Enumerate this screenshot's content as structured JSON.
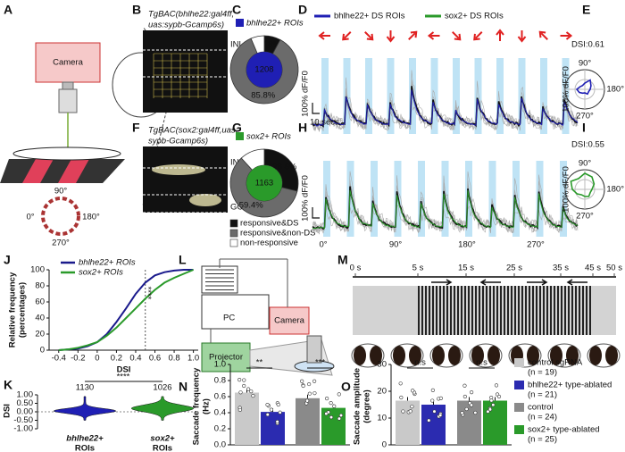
{
  "panel_labels": [
    "A",
    "B",
    "C",
    "D",
    "E",
    "F",
    "G",
    "H",
    "I",
    "J",
    "K",
    "L",
    "M",
    "N",
    "O"
  ],
  "a": {
    "camera": "Camera",
    "angles": [
      "90°",
      "0°",
      "180°",
      "270°"
    ]
  },
  "b": {
    "title": [
      "TgBAC(bhlhe22:gal4ff,",
      "uas:sypb-Gcamp6s)"
    ],
    "layers": [
      "INL",
      "IPL"
    ]
  },
  "c": {
    "legend": "bhlhe22+ ROIs",
    "color": "#1f1fb4",
    "center": "1208",
    "slices": [
      {
        "value": 7.8,
        "label": "7.8%"
      },
      {
        "value": 85.8,
        "label": "85.8%"
      },
      {
        "value": 6.4
      }
    ]
  },
  "d": {
    "legend": [
      {
        "name": "bhlhe22+ DS ROIs",
        "color": "#1f1fb4"
      },
      {
        "name": "sox2+ DS ROIs",
        "color": "#2a9a2a"
      }
    ],
    "scale_y": "100% dF/F0",
    "scale_x": "10 secs"
  },
  "e": {
    "dsi": "DSI:0.61",
    "angles": [
      "90°",
      "180°",
      "270°"
    ],
    "scale": "100% dF/F0"
  },
  "f": {
    "title": [
      "TgBAC(sox2:gal4ff,uas:-",
      "sypb-Gcamp6s)"
    ],
    "layers": [
      "INL",
      "IPL",
      "GCL"
    ]
  },
  "g": {
    "legend": "sox2+ ROIs",
    "color": "#2a9a2a",
    "center": "1163",
    "slices": [
      {
        "value": 28.8,
        "label": "28.8%"
      },
      {
        "value": 59.4,
        "label": "59.4%"
      },
      {
        "value": 11.8
      }
    ],
    "categories": [
      {
        "name": "responsive&DS",
        "color": "#111111"
      },
      {
        "name": "responsive&non-DS",
        "color": "#6b6b6b"
      },
      {
        "name": "non-responsive",
        "color": "#ffffff"
      }
    ]
  },
  "h": {
    "scale_y": "100% dF/F0",
    "angles": [
      "0°",
      "90°",
      "180°",
      "270°"
    ]
  },
  "i": {
    "dsi": "DSI:0.55",
    "angles": [
      "90°",
      "180°",
      "270°"
    ],
    "scale": "100% dF/F0"
  },
  "j": {
    "type": "line",
    "x": [
      -0.4,
      -0.3,
      -0.2,
      -0.1,
      0,
      0.1,
      0.2,
      0.3,
      0.4,
      0.5,
      0.6,
      0.7,
      0.8,
      0.9,
      1.0
    ],
    "series": [
      {
        "name": "bhlhe22+ ROIs",
        "color": "#1a1a8c",
        "values": [
          0,
          1,
          2,
          5,
          10,
          20,
          35,
          52,
          70,
          84,
          93,
          97,
          99,
          100,
          100
        ]
      },
      {
        "name": "sox2+ ROIs",
        "color": "#2a9a2a",
        "values": [
          0,
          1,
          3,
          6,
          10,
          18,
          28,
          40,
          52,
          64,
          75,
          84,
          90,
          95,
          100
        ]
      }
    ],
    "xlim": [
      -0.5,
      1.05
    ],
    "xticks": [
      -0.4,
      -0.2,
      0,
      0.2,
      0.4,
      0.6,
      0.8,
      {
        "value": 1,
        "label": "1.0"
      }
    ],
    "ylim": [
      0,
      100
    ],
    "yticks": [
      0,
      20,
      40,
      60,
      80,
      100
    ],
    "ylabel": [
      "Relative frequency",
      "(percentages)"
    ],
    "xlabel": "DSI",
    "stars": "****",
    "threshold": 0.5
  },
  "k": {
    "ylabel": "DSI",
    "ylim": [
      -1,
      1
    ],
    "yticks": [
      {
        "value": -1,
        "label": "-1.00"
      },
      {
        "value": -0.5,
        "label": "-0.50"
      },
      {
        "value": 0,
        "label": "0.00"
      },
      {
        "value": 0.5,
        "label": "0.50"
      },
      {
        "value": 1,
        "label": "1.00"
      }
    ],
    "counts": [
      "1130",
      "1026"
    ],
    "stars": "****",
    "categories": [
      [
        "bhlhe22+",
        "ROIs"
      ],
      [
        "sox2+",
        "ROIs"
      ]
    ],
    "colors": [
      "#1f1fb4",
      "#2a9a2a"
    ]
  },
  "l": {
    "pc": "PC",
    "camera": "Camera",
    "projector": "Projector"
  },
  "m": {
    "times": [
      "0 s",
      "5 s",
      "15 s",
      "25 s",
      "35 s",
      "45 s",
      "50 s"
    ]
  },
  "n": {
    "ylabel": [
      "Saccade frequency",
      "(Hz)"
    ],
    "ylim": [
      0,
      1
    ],
    "yticks": [
      {
        "value": 0,
        "label": "0.0"
      },
      0.2,
      0.4,
      0.6,
      0.8,
      {
        "value": 1,
        "label": "1.0"
      }
    ],
    "values": [
      0.65,
      0.41,
      0.58,
      0.46
    ],
    "stars": [
      "**",
      "***"
    ]
  },
  "o": {
    "ylabel": [
      "Saccade amplitude",
      "(degree)"
    ],
    "ylim": [
      0,
      30
    ],
    "yticks": [
      0,
      10,
      20,
      30
    ],
    "values": [
      16.5,
      15,
      16.5,
      16.5
    ],
    "stars": [
      "n.s",
      "n.s"
    ]
  },
  "legend": [
    {
      "name": "control sgRNA",
      "n": "(n = 19)",
      "color": "#c9c9c9"
    },
    {
      "name": "bhlhe22+ type-ablated",
      "n": "(n = 21)",
      "color": "#2b2bb0"
    },
    {
      "name": "control",
      "n": "(n = 24)",
      "color": "#8a8a8a"
    },
    {
      "name": "sox2+ type-ablated",
      "n": "(n = 25)",
      "color": "#2a9a2a"
    }
  ]
}
